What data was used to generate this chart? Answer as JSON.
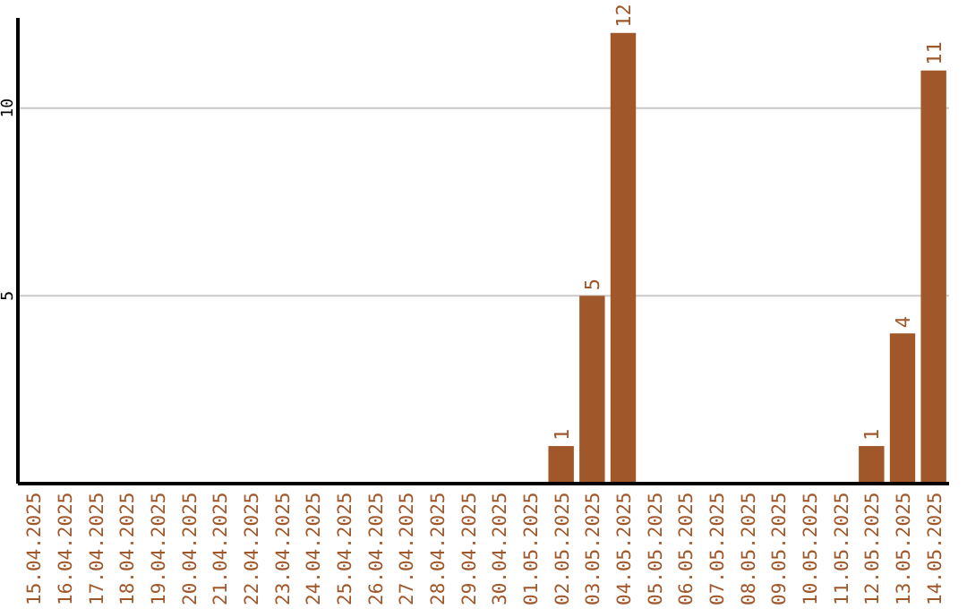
{
  "chart_data": {
    "type": "bar",
    "categories": [
      "15.04.2025",
      "16.04.2025",
      "17.04.2025",
      "18.04.2025",
      "19.04.2025",
      "20.04.2025",
      "21.04.2025",
      "22.04.2025",
      "23.04.2025",
      "24.04.2025",
      "25.04.2025",
      "26.04.2025",
      "27.04.2025",
      "28.04.2025",
      "29.04.2025",
      "30.04.2025",
      "01.05.2025",
      "02.05.2025",
      "03.05.2025",
      "04.05.2025",
      "05.05.2025",
      "06.05.2025",
      "07.05.2025",
      "08.05.2025",
      "09.05.2025",
      "10.05.2025",
      "11.05.2025",
      "12.05.2025",
      "13.05.2025",
      "14.05.2025"
    ],
    "values": [
      0,
      0,
      0,
      0,
      0,
      0,
      0,
      0,
      0,
      0,
      0,
      0,
      0,
      0,
      0,
      0,
      0,
      1,
      5,
      12,
      0,
      0,
      0,
      0,
      0,
      0,
      0,
      1,
      4,
      11
    ],
    "value_labels": [
      null,
      null,
      null,
      null,
      null,
      null,
      null,
      null,
      null,
      null,
      null,
      null,
      null,
      null,
      null,
      null,
      null,
      "1",
      "5",
      "12",
      null,
      null,
      null,
      null,
      null,
      null,
      null,
      "1",
      "4",
      "11"
    ],
    "color": "#a0572a",
    "ylim": [
      0,
      12.4
    ],
    "yticks": [
      5,
      10
    ],
    "grid": "y"
  }
}
